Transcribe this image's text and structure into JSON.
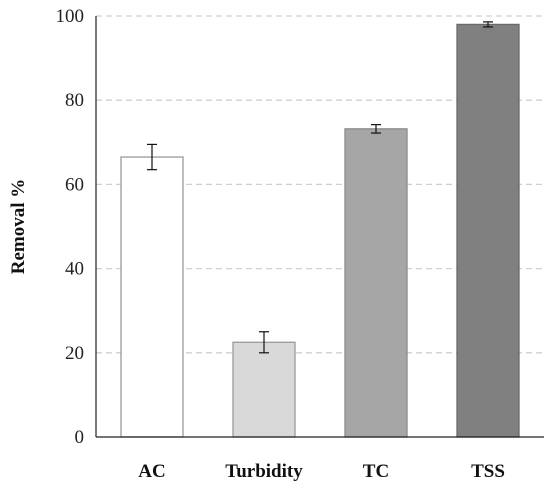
{
  "chart_data": {
    "type": "bar",
    "title": "",
    "xlabel": "",
    "ylabel": "Removal %",
    "ylim": [
      0,
      100
    ],
    "yticks": [
      0,
      20,
      40,
      60,
      80,
      100
    ],
    "grid": true,
    "categories": [
      "AC",
      "Turbidity",
      "TC",
      "TSS"
    ],
    "values": [
      66.5,
      22.5,
      73.2,
      98.0
    ],
    "errors": [
      3.0,
      2.5,
      1.0,
      0.6
    ],
    "colors": [
      "#ffffff",
      "#d9d9d9",
      "#a6a6a6",
      "#808080"
    ],
    "border_colors": [
      "#9a9a9a",
      "#9a9a9a",
      "#8a8a8a",
      "#6a6a6a"
    ]
  }
}
